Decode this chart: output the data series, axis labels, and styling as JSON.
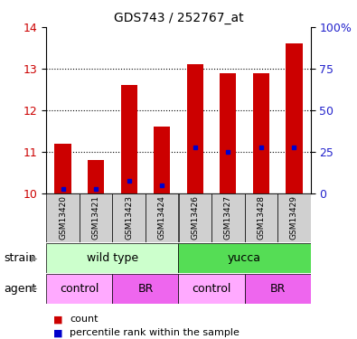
{
  "title": "GDS743 / 252767_at",
  "samples": [
    "GSM13420",
    "GSM13421",
    "GSM13423",
    "GSM13424",
    "GSM13426",
    "GSM13427",
    "GSM13428",
    "GSM13429"
  ],
  "red_bar_tops": [
    11.2,
    10.8,
    12.6,
    11.6,
    13.1,
    12.9,
    12.9,
    13.6
  ],
  "blue_marker_y": [
    10.1,
    10.1,
    10.3,
    10.2,
    11.1,
    11.0,
    11.1,
    11.1
  ],
  "bar_bottom": 10.0,
  "ylim": [
    10.0,
    14.0
  ],
  "yticks_left": [
    10,
    11,
    12,
    13,
    14
  ],
  "yticks_right_vals": [
    0,
    25,
    50,
    75,
    100
  ],
  "yticks_right_positions": [
    10.0,
    11.0,
    12.0,
    13.0,
    14.0
  ],
  "red_color": "#cc0000",
  "blue_color": "#0000cc",
  "strain_groups": [
    {
      "label": "wild type",
      "start": 0,
      "end": 4,
      "color": "#ccffcc"
    },
    {
      "label": "yucca",
      "start": 4,
      "end": 8,
      "color": "#55dd55"
    }
  ],
  "agent_groups": [
    {
      "label": "control",
      "start": 0,
      "end": 2,
      "color": "#ffaaff"
    },
    {
      "label": "BR",
      "start": 2,
      "end": 4,
      "color": "#ee66ee"
    },
    {
      "label": "control",
      "start": 4,
      "end": 6,
      "color": "#ffaaff"
    },
    {
      "label": "BR",
      "start": 6,
      "end": 8,
      "color": "#ee66ee"
    }
  ],
  "strain_label": "strain",
  "agent_label": "agent",
  "legend_count": "count",
  "legend_percentile": "percentile rank within the sample",
  "tick_label_color_left": "#cc0000",
  "tick_label_color_right": "#2222cc",
  "xticklabels_gray_bg": "#d0d0d0",
  "bar_width": 0.5,
  "grid_color": "black",
  "grid_linestyle": "dotted"
}
